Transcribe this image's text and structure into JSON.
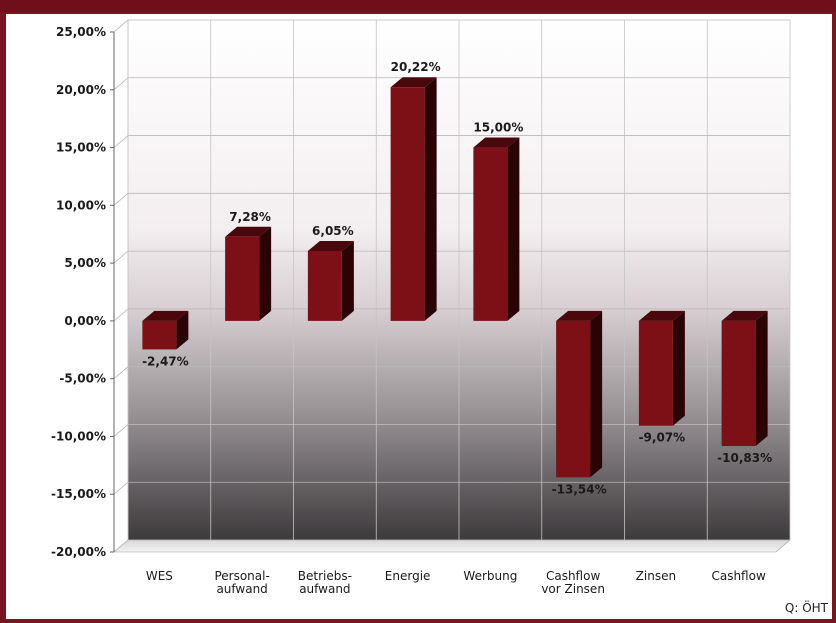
{
  "source_note": "Q: ÖHT",
  "colors": {
    "bar_front": "#7d0f17",
    "bar_side": "#2a0305",
    "bar_top": "#4a070c",
    "frame": "#7a1420"
  },
  "chart_data": {
    "type": "bar",
    "title": "",
    "xlabel": "",
    "ylabel": "",
    "categories": [
      [
        "WES"
      ],
      [
        "Personal-",
        "aufwand"
      ],
      [
        "Betriebs-",
        "aufwand"
      ],
      [
        "Energie"
      ],
      [
        "Werbung"
      ],
      [
        "Cashflow",
        "vor Zinsen"
      ],
      [
        "Zinsen"
      ],
      [
        "Cashflow"
      ]
    ],
    "values": [
      -2.47,
      7.28,
      6.05,
      20.22,
      15.0,
      -13.54,
      -9.07,
      -10.83
    ],
    "value_labels": [
      "-2,47%",
      "7,28%",
      "6,05%",
      "20,22%",
      "15,00%",
      "-13,54%",
      "-9,07%",
      "-10,83%"
    ],
    "ylim": [
      -20,
      25
    ],
    "yticks": [
      25,
      20,
      15,
      10,
      5,
      0,
      -5,
      -10,
      -15,
      -20
    ],
    "ytick_labels": [
      "25,00%",
      "20,00%",
      "15,00%",
      "10,00%",
      "5,00%",
      "0,00%",
      "-5,00%",
      "-10,00%",
      "-15,00%",
      "-20,00%"
    ],
    "grid": true,
    "legend": "none"
  }
}
